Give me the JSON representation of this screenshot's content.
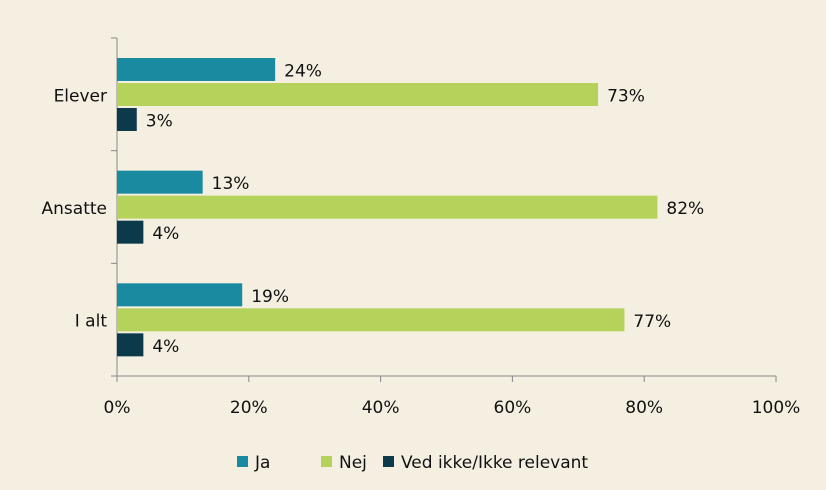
{
  "chart_data": {
    "type": "bar",
    "orientation": "horizontal",
    "categories": [
      "Elever",
      "Ansatte",
      "I alt"
    ],
    "series": [
      {
        "name": "Ja",
        "color": "#1a8aa0",
        "values": [
          24,
          13,
          19
        ],
        "value_labels": [
          "24%",
          "13%",
          "19%"
        ]
      },
      {
        "name": "Nej",
        "color": "#b5d35a",
        "values": [
          73,
          82,
          77
        ],
        "value_labels": [
          "73%",
          "82%",
          "77%"
        ]
      },
      {
        "name": "Ved ikke/Ikke relevant",
        "color": "#0c3a4a",
        "values": [
          3,
          4,
          4
        ],
        "value_labels": [
          "3%",
          "4%",
          "4%"
        ]
      }
    ],
    "xlim": [
      0,
      100
    ],
    "xticks": [
      {
        "value": 0,
        "label": "0%"
      },
      {
        "value": 20,
        "label": "20%"
      },
      {
        "value": 40,
        "label": "40%"
      },
      {
        "value": 60,
        "label": "60%"
      },
      {
        "value": 80,
        "label": "80%"
      },
      {
        "value": 100,
        "label": "100%"
      }
    ],
    "legend": "bottom",
    "grid": false
  }
}
